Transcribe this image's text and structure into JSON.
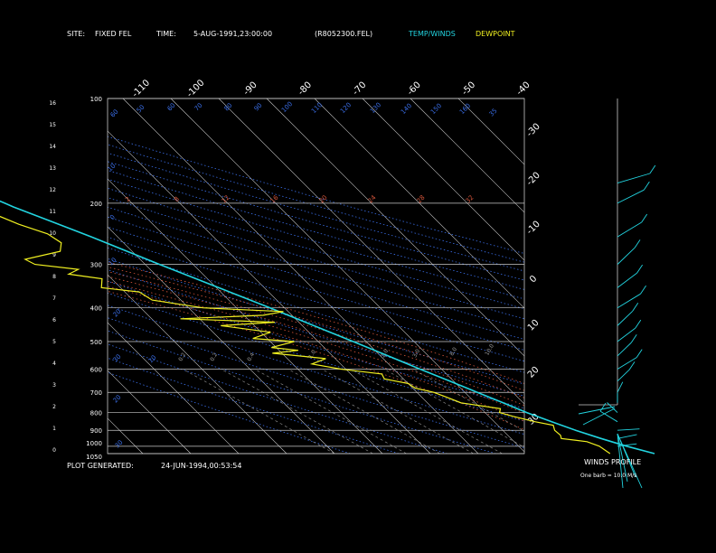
{
  "header": {
    "site_label": "SITE:",
    "site_value": "FIXED FEL",
    "time_label": "TIME:",
    "time_value": "5-AUG-1991,23:00:00",
    "file": "(R8052300.FEL)",
    "legend_temp": "TEMP/WINDS",
    "legend_dew": "DEWPOINT"
  },
  "footer": {
    "generated_label": "PLOT GENERATED:",
    "generated_value": "24-JUN-1994,00:53:54",
    "winds_title": "WINDS PROFILE",
    "barb_note": "One barb = 10.0 M/s"
  },
  "colors": {
    "background": "#000000",
    "grid": "#c8c8c8",
    "temperature": "#22d4e0",
    "dewpoint": "#f0f020",
    "dry_adiabat": "#3a6ee8",
    "moist_adiabat": "#d4553a",
    "mixing_ratio": "#9a9a9a",
    "text": "#ffffff"
  },
  "chart_data": {
    "type": "line",
    "chart_kind": "skew-T log-P sounding",
    "y_scale": "log",
    "ylim": [
      1050,
      100
    ],
    "xlim": [
      -40,
      40
    ],
    "pressure_ticks": [
      100,
      200,
      300,
      400,
      500,
      600,
      700,
      800,
      900,
      1000,
      1050
    ],
    "height_ticks_km": [
      0,
      1,
      2,
      3,
      4,
      5,
      6,
      7,
      8,
      9,
      10,
      11,
      12,
      13,
      14,
      15,
      16
    ],
    "isotherm_top_labels": [
      "-110",
      "-100",
      "-90",
      "-80",
      "-70",
      "-60",
      "-50",
      "-40"
    ],
    "isotherm_right_labels": [
      "-30",
      "-20",
      "-10",
      "0",
      "10",
      "20",
      "30"
    ],
    "dry_adiabat_labels": [
      "60",
      "50",
      "60",
      "70",
      "80",
      "90",
      "100",
      "110",
      "120",
      "130",
      "140",
      "150",
      "160",
      "10",
      "0",
      "10",
      "20",
      "30",
      "20",
      "10",
      "30",
      "35"
    ],
    "moist_adiabat_labels": [
      "2",
      "8",
      "12",
      "16",
      "20",
      "24",
      "28",
      "32"
    ],
    "mixing_ratio_labels": [
      "0.2",
      "0.2",
      "0.4",
      "1.0",
      "2.0",
      "3.0",
      "8.0",
      "10.0"
    ],
    "series": [
      {
        "name": "TEMP/WINDS",
        "points": [
          [
            1050,
            26.8
          ],
          [
            1000,
            22.5
          ],
          [
            950,
            18.8
          ],
          [
            900,
            15.2
          ],
          [
            850,
            12.0
          ],
          [
            800,
            8.7
          ],
          [
            750,
            5.8
          ],
          [
            700,
            2.6
          ],
          [
            650,
            -0.8
          ],
          [
            600,
            -4.5
          ],
          [
            550,
            -8.4
          ],
          [
            500,
            -12.7
          ],
          [
            450,
            -17.6
          ],
          [
            400,
            -23.0
          ],
          [
            350,
            -29.5
          ],
          [
            300,
            -37.0
          ],
          [
            250,
            -45.5
          ],
          [
            225,
            -50.8
          ],
          [
            205,
            -55.5
          ],
          [
            200,
            -56.5
          ],
          [
            190,
            -58.7
          ]
        ]
      },
      {
        "name": "DEWPOINT",
        "points": [
          [
            1050,
            17.5
          ],
          [
            1000,
            16.8
          ],
          [
            970,
            15.2
          ],
          [
            950,
            10.5
          ],
          [
            930,
            11.0
          ],
          [
            900,
            10.8
          ],
          [
            870,
            11.6
          ],
          [
            850,
            8.5
          ],
          [
            820,
            5.0
          ],
          [
            800,
            3.0
          ],
          [
            780,
            4.0
          ],
          [
            750,
            -3.0
          ],
          [
            720,
            -5.0
          ],
          [
            700,
            -6.5
          ],
          [
            680,
            -9.5
          ],
          [
            660,
            -10.0
          ],
          [
            640,
            -14.0
          ],
          [
            620,
            -13.5
          ],
          [
            600,
            -21.0
          ],
          [
            580,
            -26.0
          ],
          [
            560,
            -22.0
          ],
          [
            540,
            -32.0
          ],
          [
            530,
            -26.0
          ],
          [
            520,
            -31.0
          ],
          [
            500,
            -25.0
          ],
          [
            490,
            -33.0
          ],
          [
            470,
            -28.0
          ],
          [
            450,
            -37.0
          ],
          [
            440,
            -25.0
          ],
          [
            430,
            -44.0
          ],
          [
            420,
            -26.0
          ],
          [
            410,
            -21.0
          ],
          [
            400,
            -37.0
          ],
          [
            380,
            -46.0
          ],
          [
            360,
            -47.0
          ],
          [
            350,
            -54.0
          ],
          [
            330,
            -52.0
          ],
          [
            320,
            -58.0
          ],
          [
            310,
            -55.0
          ],
          [
            300,
            -63.0
          ],
          [
            290,
            -64.0
          ],
          [
            275,
            -55.0
          ],
          [
            260,
            -53.0
          ],
          [
            245,
            -54.0
          ],
          [
            230,
            -58.0
          ],
          [
            215,
            -61.0
          ],
          [
            205,
            -63.0
          ],
          [
            200,
            -65.0
          ]
        ]
      }
    ],
    "winds_profile": {
      "title": "WINDS PROFILE",
      "units": "M/s",
      "levels": [
        {
          "pressure": 1000,
          "dir": 340,
          "speed": 3
        },
        {
          "pressure": 950,
          "dir": 330,
          "speed": 4
        },
        {
          "pressure": 900,
          "dir": 350,
          "speed": 4
        },
        {
          "pressure": 850,
          "dir": 240,
          "speed": 10
        },
        {
          "pressure": 800,
          "dir": 250,
          "speed": 8
        },
        {
          "pressure": 750,
          "dir": 270,
          "speed": 7
        },
        {
          "pressure": 700,
          "dir": 280,
          "speed": 8
        },
        {
          "pressure": 650,
          "dir": 290,
          "speed": 10
        },
        {
          "pressure": 600,
          "dir": 300,
          "speed": 12
        },
        {
          "pressure": 550,
          "dir": 290,
          "speed": 13
        },
        {
          "pressure": 500,
          "dir": 295,
          "speed": 14
        },
        {
          "pressure": 450,
          "dir": 290,
          "speed": 15
        },
        {
          "pressure": 400,
          "dir": 300,
          "speed": 16
        },
        {
          "pressure": 350,
          "dir": 295,
          "speed": 16
        },
        {
          "pressure": 300,
          "dir": 290,
          "speed": 18
        },
        {
          "pressure": 250,
          "dir": 300,
          "speed": 17
        },
        {
          "pressure": 200,
          "dir": 305,
          "speed": 16
        },
        {
          "pressure": 175,
          "dir": 320,
          "speed": 14
        }
      ]
    }
  }
}
